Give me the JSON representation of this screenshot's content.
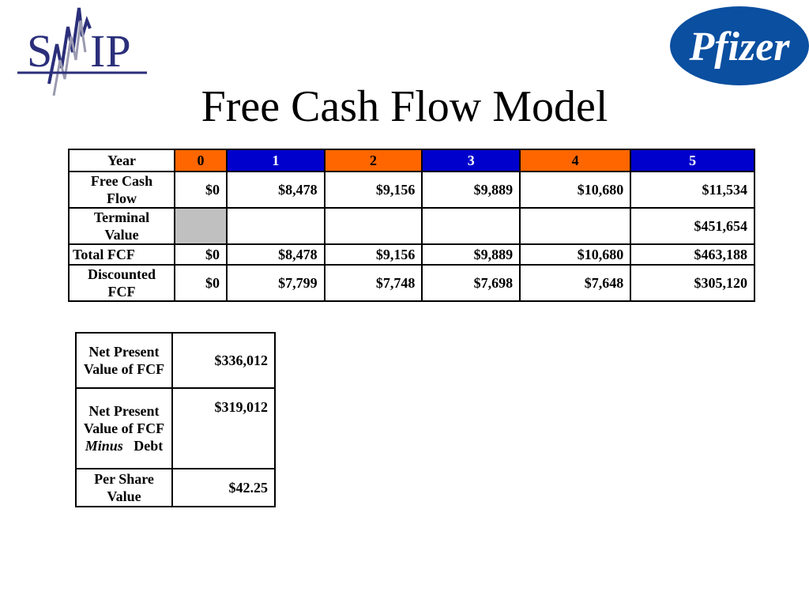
{
  "logos": {
    "smip": {
      "text_left": "S",
      "text_right": "IP",
      "color": "#2b2f7a"
    },
    "pfizer": {
      "text": "Pfizer",
      "color": "#0a4fa0"
    }
  },
  "title": "Free Cash Flow Model",
  "fcf_table": {
    "year_label": "Year",
    "years": [
      "0",
      "1",
      "2",
      "3",
      "4",
      "5"
    ],
    "year_colors": [
      "#ff6600",
      "#0000cc",
      "#ff6600",
      "#0000cc",
      "#ff6600",
      "#0000cc"
    ],
    "rows": [
      {
        "label": "Free Cash Flow",
        "values": [
          "$0",
          "$8,478",
          "$9,156",
          "$9,889",
          "$10,680",
          "$11,534"
        ]
      },
      {
        "label": "Terminal Value",
        "values": [
          "",
          "",
          "",
          "",
          "",
          "$451,654"
        ]
      },
      {
        "label": "Total FCF",
        "values": [
          "$0",
          "$8,478",
          "$9,156",
          "$9,889",
          "$10,680",
          "$463,188"
        ]
      },
      {
        "label": "Discounted FCF",
        "values": [
          "$0",
          "$7,799",
          "$7,748",
          "$7,698",
          "$7,648",
          "$305,120"
        ]
      }
    ]
  },
  "npv_table": {
    "rows": [
      {
        "label": "Net Present Value of FCF",
        "value": "$336,012"
      },
      {
        "label_line1": "Net Present Value of FCF",
        "label_italic": "Minus",
        "label_tail": "Debt",
        "value": "$319,012"
      },
      {
        "label": "Per Share Value",
        "value": "$42.25"
      }
    ]
  }
}
